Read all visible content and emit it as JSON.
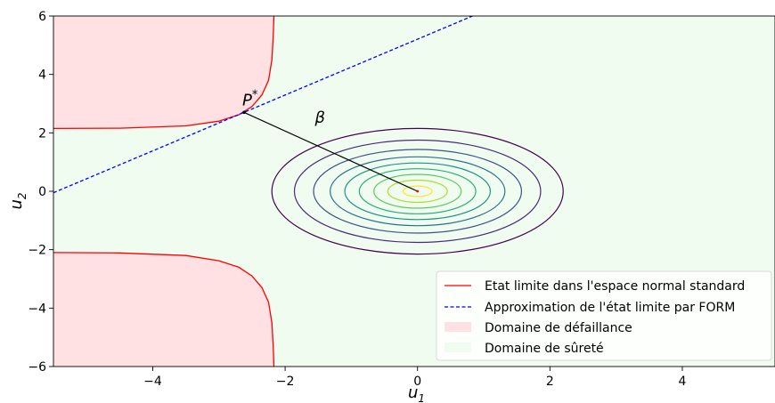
{
  "chart_data": {
    "type": "line",
    "title": "",
    "xlabel": "u",
    "xlabel_sub": "1",
    "ylabel": "u",
    "ylabel_sub": "2",
    "xlim": [
      -5.5,
      5.4
    ],
    "ylim": [
      -6,
      6
    ],
    "x_ticks": [
      -4,
      -2,
      0,
      2,
      4
    ],
    "y_ticks": [
      -6,
      -4,
      -2,
      0,
      2,
      4,
      6
    ],
    "x_tick_labels": [
      "−4",
      "−2",
      "0",
      "2",
      "4"
    ],
    "y_tick_labels": [
      "−6",
      "−4",
      "−2",
      "0",
      "2",
      "4",
      "6"
    ],
    "grid": false,
    "legend_position": "bottom-right",
    "colors": {
      "limit_state": "#ff0000",
      "form_line": "#0000ff",
      "failure_fill": "#ffe0e3",
      "safety_fill": "#effcef",
      "beta_line": "#000000",
      "contours": [
        "#440154",
        "#472d7b",
        "#3b528b",
        "#2c728e",
        "#21918c",
        "#28ae80",
        "#5ec962",
        "#addc30",
        "#fde725"
      ]
    },
    "series": [
      {
        "name": "Etat limite dans l'espace normal standard",
        "style": "solid",
        "branches": [
          [
            [
              -5.5,
              2.15
            ],
            [
              -4.5,
              2.16
            ],
            [
              -3.5,
              2.24
            ],
            [
              -3.0,
              2.4
            ],
            [
              -2.7,
              2.62
            ],
            [
              -2.5,
              2.9
            ],
            [
              -2.35,
              3.3
            ],
            [
              -2.25,
              3.8
            ],
            [
              -2.2,
              4.5
            ],
            [
              -2.18,
              5.3
            ],
            [
              -2.17,
              6.0
            ]
          ],
          [
            [
              -5.5,
              -2.1
            ],
            [
              -4.5,
              -2.11
            ],
            [
              -3.5,
              -2.2
            ],
            [
              -3.0,
              -2.38
            ],
            [
              -2.7,
              -2.6
            ],
            [
              -2.5,
              -2.9
            ],
            [
              -2.35,
              -3.3
            ],
            [
              -2.25,
              -3.8
            ],
            [
              -2.2,
              -4.5
            ],
            [
              -2.18,
              -5.3
            ],
            [
              -2.17,
              -6.0
            ]
          ]
        ]
      },
      {
        "name": "Approximation de l'état limite par FORM",
        "style": "dashed",
        "points": [
          [
            -5.5,
            -0.05
          ],
          [
            0.83,
            6.0
          ]
        ]
      }
    ],
    "areas": [
      {
        "name": "Domaine de défaillance"
      },
      {
        "name": "Domaine de sûreté"
      }
    ],
    "contours": {
      "center": [
        0,
        0
      ],
      "levels": 9,
      "semi_axes_x": [
        2.2,
        1.86,
        1.57,
        1.32,
        1.1,
        0.88,
        0.66,
        0.45,
        0.22
      ],
      "semi_axes_y": [
        2.15,
        1.75,
        1.43,
        1.18,
        0.97,
        0.77,
        0.58,
        0.38,
        0.18
      ]
    },
    "design_point": {
      "label": "P",
      "label_sup": "*",
      "x": -2.62,
      "y": 2.7
    },
    "origin_point": {
      "x": 0,
      "y": 0
    },
    "beta_annotation": {
      "label": "β",
      "x": -1.55,
      "y": 2.35
    }
  }
}
